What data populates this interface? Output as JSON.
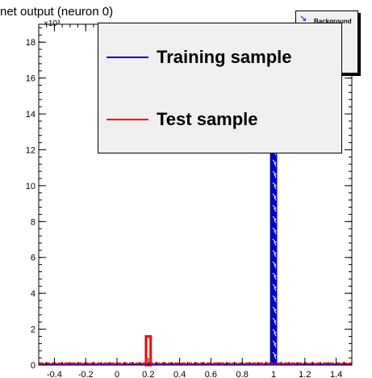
{
  "title": "net output (neuron 0)",
  "y_exponent": "×10³",
  "mini_legend": {
    "label": "Background",
    "icon": "signal-background-icon"
  },
  "legend": {
    "entries": [
      {
        "label": "Training sample",
        "color": "#0000cc"
      },
      {
        "label": "Test sample",
        "color": "#ff0000"
      }
    ]
  },
  "chart_data": {
    "type": "bar",
    "xlim": [
      -0.5,
      1.5
    ],
    "ylim": [
      0,
      19
    ],
    "x_ticks": [
      -0.4,
      -0.2,
      0,
      0.2,
      0.4,
      0.6,
      0.8,
      1,
      1.2,
      1.4
    ],
    "y_ticks": [
      0,
      2,
      4,
      6,
      8,
      10,
      12,
      14,
      16,
      18
    ],
    "series": [
      {
        "name": "Training sample",
        "color": "#0000cc",
        "fill": "hatched",
        "bins": [
          {
            "x0": 0.98,
            "x1": 1.02,
            "value": 18.8
          }
        ]
      },
      {
        "name": "Test sample",
        "color": "#ff0000",
        "fill": "hollow",
        "bins": [
          {
            "x0": 0.18,
            "x1": 0.22,
            "value": 1.6
          }
        ]
      }
    ]
  }
}
